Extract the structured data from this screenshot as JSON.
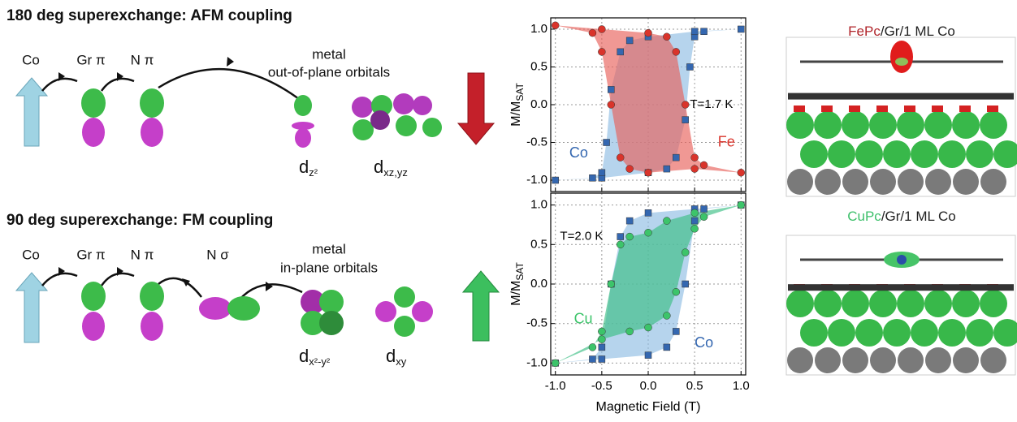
{
  "diagram": {
    "rows": [
      {
        "title": "180 deg superexchange: AFM coupling",
        "labels": [
          "Co",
          "Gr π",
          "N π"
        ],
        "metal": "metal",
        "orbitals_label": "out-of-plane orbitals",
        "orbitals": [
          {
            "d": "d",
            "sub": "z²"
          },
          {
            "d": "d",
            "sub": "xz,yz"
          }
        ]
      },
      {
        "title": "90 deg superexchange: FM coupling",
        "labels": [
          "Co",
          "Gr π",
          "N π",
          "N σ"
        ],
        "metal": "metal",
        "orbitals_label": "in-plane orbitals",
        "orbitals": [
          {
            "d": "d",
            "sub": "x²-y²"
          },
          {
            "d": "d",
            "sub": "xy"
          }
        ]
      }
    ]
  },
  "panels": [
    {
      "molecule": "FePc",
      "rest": "/Gr/1 ML Co"
    },
    {
      "molecule": "CuPc",
      "rest": "/Gr/1 ML Co"
    }
  ],
  "chart_data": [
    {
      "type": "scatter",
      "annotation": "T=1.7 K",
      "ylabel": {
        "text": "M/M",
        "sub": "SAT"
      },
      "xlim": [
        -1.05,
        1.05
      ],
      "ylim": [
        -1.15,
        1.15
      ],
      "xticks": [
        -1,
        -0.5,
        0,
        0.5,
        1
      ],
      "yticks": [
        {
          "value": -1,
          "label": "-1.0"
        },
        {
          "value": -0.5,
          "label": "-0.5"
        },
        {
          "value": 0,
          "label": "0.0"
        },
        {
          "value": 0.5,
          "label": "0.5"
        },
        {
          "value": 1,
          "label": "1.0"
        }
      ],
      "grid": true,
      "series": [
        {
          "name": "Co",
          "color": "#3467b0",
          "fill": "#8fbde3",
          "marker": "square",
          "x": [
            -1,
            -0.5,
            0,
            0.2,
            0.3,
            0.4,
            0.45,
            0.5,
            0.6,
            1,
            0.5,
            0,
            -0.2,
            -0.3,
            -0.4,
            -0.45,
            -0.5,
            -0.6
          ],
          "values": [
            -1,
            -0.97,
            -0.9,
            -0.85,
            -0.7,
            -0.2,
            0.5,
            0.9,
            0.97,
            1,
            0.97,
            0.9,
            0.85,
            0.7,
            0.2,
            -0.5,
            -0.9,
            -0.97
          ]
        },
        {
          "name": "Fe",
          "color": "#d9342b",
          "fill": "#e8615a",
          "marker": "circle",
          "x": [
            -1,
            -0.5,
            0,
            0.2,
            0.3,
            0.4,
            0.5,
            0.6,
            1,
            0.5,
            0,
            -0.2,
            -0.3,
            -0.4,
            -0.5,
            -0.6
          ],
          "values": [
            1.05,
            1,
            0.95,
            0.9,
            0.7,
            0,
            -0.7,
            -0.8,
            -0.9,
            -0.85,
            -0.9,
            -0.85,
            -0.7,
            0,
            0.7,
            0.95
          ]
        }
      ]
    },
    {
      "type": "scatter",
      "annotation": "T=2.0 K",
      "ylabel": {
        "text": "M/M",
        "sub": "SAT"
      },
      "xlabel": "Magnetic Field (T)",
      "xlim": [
        -1.05,
        1.05
      ],
      "ylim": [
        -1.15,
        1.15
      ],
      "xticks": [
        {
          "value": -1,
          "label": "-1.0"
        },
        {
          "value": -0.5,
          "label": "-0.5"
        },
        {
          "value": 0,
          "label": "0.0"
        },
        {
          "value": 0.5,
          "label": "0.5"
        },
        {
          "value": 1,
          "label": "1.0"
        }
      ],
      "yticks": [
        {
          "value": -1,
          "label": "-1.0"
        },
        {
          "value": -0.5,
          "label": "-0.5"
        },
        {
          "value": 0,
          "label": "0.0"
        },
        {
          "value": 0.5,
          "label": "0.5"
        },
        {
          "value": 1,
          "label": "1.0"
        }
      ],
      "grid": true,
      "series": [
        {
          "name": "Co",
          "color": "#3467b0",
          "fill": "#8fbde3",
          "marker": "square",
          "x": [
            -1,
            -0.5,
            0,
            0.2,
            0.3,
            0.4,
            0.5,
            0.6,
            1,
            0.5,
            0,
            -0.2,
            -0.3,
            -0.4,
            -0.5,
            -0.6
          ],
          "values": [
            -1,
            -0.95,
            -0.9,
            -0.8,
            -0.6,
            0,
            0.8,
            0.95,
            1,
            0.95,
            0.9,
            0.8,
            0.6,
            0,
            -0.8,
            -0.95
          ]
        },
        {
          "name": "Cu",
          "color": "#3cc46a",
          "fill": "#3cbf84",
          "marker": "circle",
          "x": [
            -1,
            -0.5,
            -0.2,
            0,
            0.2,
            0.3,
            0.4,
            0.5,
            0.6,
            1,
            0.5,
            0.2,
            0,
            -0.2,
            -0.3,
            -0.4,
            -0.5,
            -0.6
          ],
          "values": [
            -1,
            -0.7,
            -0.6,
            -0.55,
            -0.4,
            -0.1,
            0.4,
            0.7,
            0.85,
            1,
            0.9,
            0.8,
            0.65,
            0.6,
            0.5,
            0,
            -0.6,
            -0.8
          ]
        }
      ]
    }
  ]
}
